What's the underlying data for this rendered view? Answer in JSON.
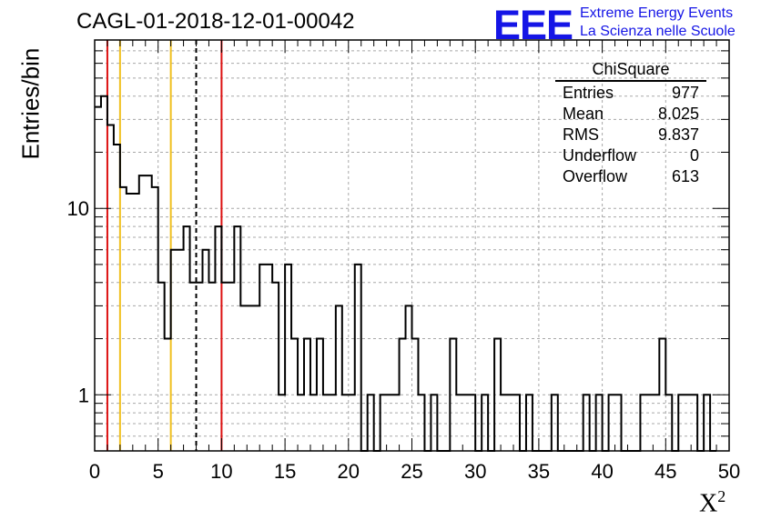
{
  "title": "CAGL-01-2018-12-01-00042",
  "logo": {
    "text": "EEE",
    "line1": "Extreme Energy Events",
    "line2": "La Scienza nelle Scuole",
    "color": "#1515e6"
  },
  "stats": {
    "title": "ChiSquare",
    "rows": [
      {
        "label": "Entries",
        "value": "977"
      },
      {
        "label": "Mean",
        "value": "8.025"
      },
      {
        "label": "RMS",
        "value": "9.837"
      },
      {
        "label": "Underflow",
        "value": "0"
      },
      {
        "label": "Overflow",
        "value": "613"
      }
    ]
  },
  "chart_data": {
    "type": "histogram",
    "title": "CAGL-01-2018-12-01-00042",
    "xlabel": "X",
    "xlabel_sup": "2",
    "ylabel": "Entries/bin",
    "xlim": [
      0,
      50
    ],
    "ylim": [
      0.5,
      80
    ],
    "yscale": "log",
    "grid": true,
    "bin_width": 0.5,
    "x_ticks": [
      0,
      5,
      10,
      15,
      20,
      25,
      30,
      35,
      40,
      45,
      50
    ],
    "x_tick_labels": [
      "0",
      "5",
      "10",
      "15",
      "20",
      "25",
      "30",
      "35",
      "40",
      "45",
      "50"
    ],
    "y_tick_labels": [
      {
        "value": 1,
        "label": "1"
      },
      {
        "value": 10,
        "label": "10"
      }
    ],
    "values": [
      35,
      40,
      28,
      22,
      13,
      12,
      12,
      15,
      15,
      13,
      4,
      2,
      6,
      6,
      8,
      4,
      4,
      6,
      4,
      8,
      4,
      4,
      8,
      3,
      3,
      3,
      5,
      5,
      4,
      1,
      5,
      2,
      1,
      2,
      1,
      2,
      1,
      1,
      3,
      1,
      1,
      5,
      0,
      1,
      0,
      1,
      1,
      1,
      2,
      3,
      2,
      1,
      0,
      1,
      0,
      0,
      2,
      1,
      1,
      1,
      0,
      1,
      0,
      2,
      1,
      1,
      1,
      0,
      1,
      0,
      0,
      0,
      1,
      0,
      0,
      0,
      0,
      1,
      0,
      1,
      0,
      1,
      1,
      0,
      0,
      0,
      1,
      1,
      1,
      2,
      1,
      0,
      1,
      1,
      1,
      0,
      1,
      0
    ],
    "vertical_lines": [
      {
        "x": 1,
        "color": "#dd1111",
        "style": "solid"
      },
      {
        "x": 2,
        "color": "#f0c020",
        "style": "solid"
      },
      {
        "x": 6,
        "color": "#f0c020",
        "style": "solid"
      },
      {
        "x": 8,
        "color": "#000000",
        "style": "dashed"
      },
      {
        "x": 10,
        "color": "#dd1111",
        "style": "solid"
      }
    ]
  }
}
